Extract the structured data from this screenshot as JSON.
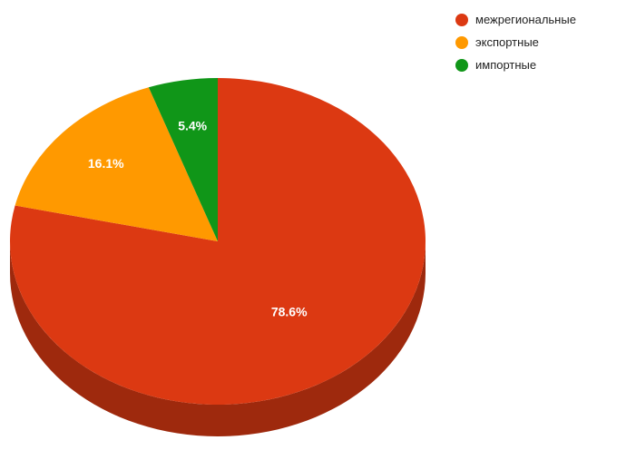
{
  "chart_data": {
    "type": "pie",
    "style": "3d",
    "title": "",
    "categories": [
      "межрегиональные",
      "экспортные",
      "импортные"
    ],
    "values": [
      78.6,
      16.1,
      5.4
    ],
    "value_labels": [
      "78.6%",
      "16.1%",
      "5.4%"
    ],
    "colors": [
      "#dc3912",
      "#ff9900",
      "#109618"
    ],
    "legend_position": "right",
    "start_angle": 0
  }
}
